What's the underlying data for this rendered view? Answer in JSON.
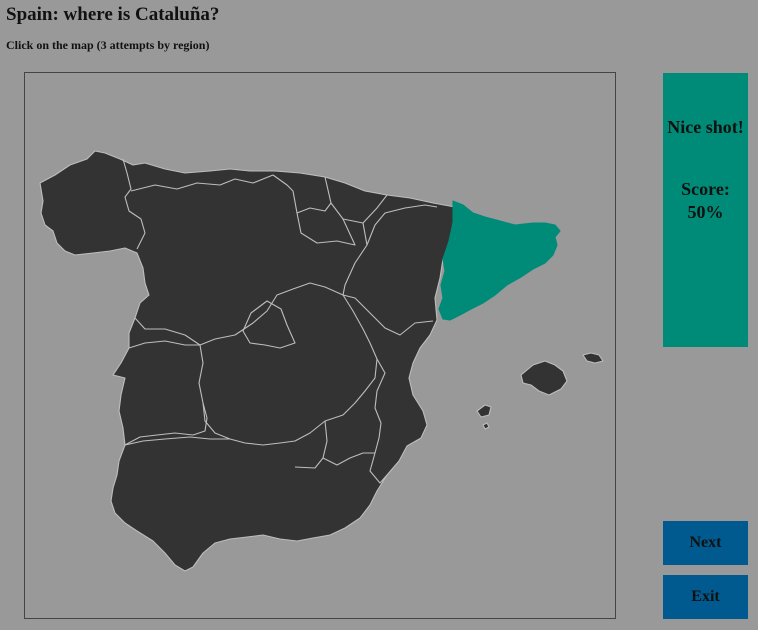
{
  "game": {
    "title": "Spain: where is Cataluña?",
    "instruction": "Click on the map (3 attempts by region)"
  },
  "feedback": {
    "message": "Nice shot!",
    "score_label": "Score:",
    "score_value": "50%",
    "score_percent": 50
  },
  "buttons": {
    "next_label": "Next",
    "exit_label": "Exit"
  },
  "map": {
    "selected_region": "Cataluña"
  },
  "colors": {
    "background": "#999999",
    "land": "#333333",
    "region_border": "#bdbdbd",
    "correct_highlight": "#008b78",
    "button": "#015a8f"
  }
}
